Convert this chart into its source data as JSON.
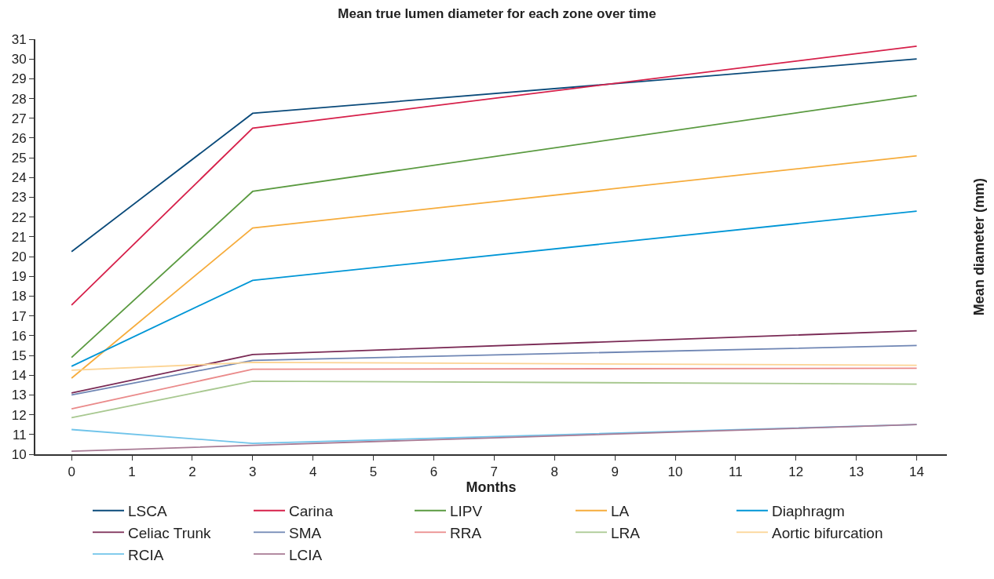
{
  "chart_data": {
    "type": "line",
    "title": "Mean true lumen diameter for each zone over time",
    "xlabel": "Months",
    "ylabel": "Mean diameter (mm)",
    "x": [
      0,
      3,
      14
    ],
    "xlim": [
      -0.6,
      14.5
    ],
    "xticks": [
      0,
      1,
      2,
      3,
      4,
      5,
      6,
      7,
      8,
      9,
      10,
      11,
      12,
      13,
      14
    ],
    "ylim": [
      10,
      31
    ],
    "yticks": [
      10,
      11,
      12,
      13,
      14,
      15,
      16,
      17,
      18,
      19,
      20,
      21,
      22,
      23,
      24,
      25,
      26,
      27,
      28,
      29,
      30,
      31
    ],
    "grid": false,
    "legend": "bottom",
    "marker": "none",
    "line_style": "solid",
    "series": [
      {
        "name": "LSCA",
        "color": "#0a4a7a",
        "values": [
          20.25,
          27.25,
          30.0
        ]
      },
      {
        "name": "Carina",
        "color": "#d6204a",
        "values": [
          17.55,
          26.5,
          30.65
        ]
      },
      {
        "name": "LIPV",
        "color": "#5a9a40",
        "values": [
          14.9,
          23.3,
          28.15
        ]
      },
      {
        "name": "LA",
        "color": "#f6ac3c",
        "values": [
          13.85,
          21.45,
          25.1
        ]
      },
      {
        "name": "Diaphragm",
        "color": "#0096d6",
        "values": [
          14.45,
          18.8,
          22.3
        ]
      },
      {
        "name": "Celiac Trunk",
        "color": "#7a2a55",
        "values": [
          13.1,
          15.05,
          16.25
        ]
      },
      {
        "name": "SMA",
        "color": "#6f86b4",
        "values": [
          13.0,
          14.75,
          15.5
        ]
      },
      {
        "name": "RRA",
        "color": "#ea8a8a",
        "values": [
          12.3,
          14.3,
          14.35
        ]
      },
      {
        "name": "LRA",
        "color": "#a8c890",
        "values": [
          11.85,
          13.7,
          13.55
        ]
      },
      {
        "name": "Aortic bifurcation",
        "color": "#fcd494",
        "values": [
          14.25,
          14.65,
          14.5
        ]
      },
      {
        "name": "RCIA",
        "color": "#70c4ea",
        "values": [
          11.25,
          10.55,
          11.5
        ]
      },
      {
        "name": "LCIA",
        "color": "#a87a94",
        "values": [
          10.15,
          10.45,
          11.5
        ]
      }
    ]
  }
}
